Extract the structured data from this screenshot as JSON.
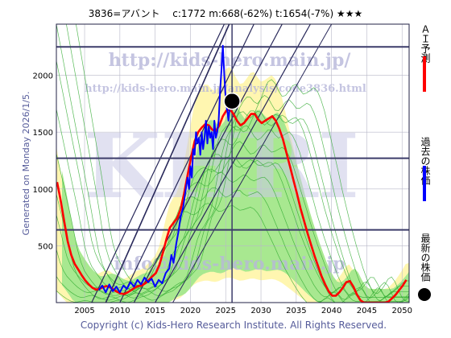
{
  "header": {
    "title": "3836=アバント　 c:1772  m:668(-62%)  t:1654(-7%)  ★★★"
  },
  "side_label": "Generated on Monday 2026/1/5.",
  "watermarks": {
    "url": "http://kids-hero.main.jp/",
    "analysis_url": "http://kids-hero.main.jp/analysis/code3836.html",
    "big": "KHRI",
    "email": "info@kids-hero.main.jp"
  },
  "footer": {
    "copyright": "Copyright (c) Kids-Hero Research Institute. All Rights Reserved."
  },
  "legend": [
    {
      "label": "ＡＩ予測",
      "color": "#ff0000",
      "marker": "line"
    },
    {
      "label": "過去の株価",
      "color": "#0000ff",
      "marker": "line"
    },
    {
      "label": "最新の株価",
      "color": "#000000",
      "marker": "dot"
    }
  ],
  "colors": {
    "band_outer": "#fff6b0",
    "band_inner": "#a8e890",
    "green_line": "#2faa2f",
    "grid": "#b8b8c8",
    "hline": "#3c3c6a",
    "trend": "#28285a"
  },
  "chart_data": {
    "type": "line",
    "title": "3836=アバント　 c:1772  m:668(-62%)  t:1654(-7%)  ★★★",
    "xlim": [
      2001,
      2051
    ],
    "ylim": [
      0,
      2450
    ],
    "x_ticks": [
      2005,
      2010,
      2015,
      2020,
      2025,
      2030,
      2035,
      2040,
      2045,
      2050
    ],
    "y_ticks": [
      500,
      1000,
      1500,
      2000
    ],
    "horizontal_levels": [
      2250,
      1270,
      640
    ],
    "vertical_marker_year": 2025.9,
    "latest": {
      "year": 2025.9,
      "price": 1772
    },
    "series": [
      {
        "name": "ＡＩ予測",
        "color": "#ff0000",
        "points": [
          [
            2001.1,
            1060
          ],
          [
            2001.6,
            900
          ],
          [
            2002.1,
            720
          ],
          [
            2002.6,
            540
          ],
          [
            2003.1,
            420
          ],
          [
            2003.6,
            340
          ],
          [
            2004.1,
            290
          ],
          [
            2004.6,
            240
          ],
          [
            2005.1,
            195
          ],
          [
            2005.6,
            160
          ],
          [
            2006.1,
            130
          ],
          [
            2006.6,
            115
          ],
          [
            2007.1,
            120
          ],
          [
            2007.6,
            135
          ],
          [
            2008.1,
            145
          ],
          [
            2008.6,
            135
          ],
          [
            2009.1,
            115
          ],
          [
            2009.6,
            95
          ],
          [
            2010.1,
            80
          ],
          [
            2010.6,
            75
          ],
          [
            2011.1,
            90
          ],
          [
            2011.6,
            110
          ],
          [
            2012.1,
            130
          ],
          [
            2012.6,
            145
          ],
          [
            2013.1,
            150
          ],
          [
            2013.6,
            170
          ],
          [
            2014.1,
            200
          ],
          [
            2014.6,
            230
          ],
          [
            2015.1,
            260
          ],
          [
            2015.6,
            330
          ],
          [
            2016.1,
            440
          ],
          [
            2016.6,
            560
          ],
          [
            2017.1,
            660
          ],
          [
            2017.6,
            700
          ],
          [
            2018.1,
            740
          ],
          [
            2018.6,
            820
          ],
          [
            2019.1,
            960
          ],
          [
            2019.6,
            1120
          ],
          [
            2020.1,
            1280
          ],
          [
            2020.6,
            1420
          ],
          [
            2021.1,
            1500
          ],
          [
            2021.6,
            1540
          ],
          [
            2022.1,
            1570
          ],
          [
            2022.6,
            1560
          ],
          [
            2023.1,
            1520
          ],
          [
            2023.6,
            1510
          ],
          [
            2024.1,
            1560
          ],
          [
            2024.6,
            1640
          ],
          [
            2025.1,
            1690
          ],
          [
            2025.6,
            1700
          ],
          [
            2026.1,
            1660
          ],
          [
            2026.6,
            1600
          ],
          [
            2027.1,
            1560
          ],
          [
            2027.6,
            1580
          ],
          [
            2028.1,
            1620
          ],
          [
            2028.6,
            1660
          ],
          [
            2029.1,
            1660
          ],
          [
            2029.6,
            1610
          ],
          [
            2030.1,
            1580
          ],
          [
            2030.6,
            1600
          ],
          [
            2031.1,
            1620
          ],
          [
            2031.6,
            1640
          ],
          [
            2032.1,
            1600
          ],
          [
            2032.6,
            1530
          ],
          [
            2033.1,
            1440
          ],
          [
            2033.6,
            1320
          ],
          [
            2034.1,
            1200
          ],
          [
            2034.6,
            1080
          ],
          [
            2035.1,
            960
          ],
          [
            2035.6,
            830
          ],
          [
            2036.1,
            720
          ],
          [
            2036.6,
            610
          ],
          [
            2037.1,
            510
          ],
          [
            2037.6,
            410
          ],
          [
            2038.1,
            320
          ],
          [
            2038.6,
            230
          ],
          [
            2039.1,
            160
          ],
          [
            2039.6,
            100
          ],
          [
            2040.1,
            60
          ],
          [
            2040.6,
            60
          ],
          [
            2041.1,
            90
          ],
          [
            2041.6,
            130
          ],
          [
            2042.1,
            180
          ],
          [
            2042.6,
            190
          ],
          [
            2043.1,
            140
          ],
          [
            2043.6,
            70
          ],
          [
            2044.1,
            20
          ],
          [
            2044.6,
            0
          ],
          [
            2045.1,
            0
          ],
          [
            2045.6,
            0
          ],
          [
            2046.1,
            0
          ],
          [
            2046.6,
            0
          ],
          [
            2047.1,
            0
          ],
          [
            2047.6,
            0
          ],
          [
            2048.1,
            10
          ],
          [
            2048.6,
            40
          ],
          [
            2049.1,
            70
          ],
          [
            2049.6,
            110
          ],
          [
            2050.1,
            150
          ],
          [
            2050.6,
            200
          ]
        ]
      },
      {
        "name": "過去の株価",
        "color": "#0000ff",
        "points": [
          [
            2007.0,
            110
          ],
          [
            2007.5,
            150
          ],
          [
            2008.0,
            90
          ],
          [
            2008.5,
            160
          ],
          [
            2009.0,
            100
          ],
          [
            2009.5,
            140
          ],
          [
            2010.0,
            90
          ],
          [
            2010.5,
            150
          ],
          [
            2011.0,
            120
          ],
          [
            2011.5,
            180
          ],
          [
            2012.0,
            140
          ],
          [
            2012.5,
            200
          ],
          [
            2013.0,
            160
          ],
          [
            2013.5,
            220
          ],
          [
            2014.0,
            180
          ],
          [
            2014.5,
            210
          ],
          [
            2015.0,
            140
          ],
          [
            2015.5,
            200
          ],
          [
            2016.0,
            170
          ],
          [
            2016.5,
            260
          ],
          [
            2017.0,
            300
          ],
          [
            2017.3,
            420
          ],
          [
            2017.6,
            350
          ],
          [
            2018.0,
            520
          ],
          [
            2018.3,
            620
          ],
          [
            2018.6,
            750
          ],
          [
            2019.0,
            850
          ],
          [
            2019.3,
            980
          ],
          [
            2019.6,
            1100
          ],
          [
            2019.8,
            1000
          ],
          [
            2020.0,
            1200
          ],
          [
            2020.2,
            1100
          ],
          [
            2020.4,
            1350
          ],
          [
            2020.6,
            1300
          ],
          [
            2020.8,
            1500
          ],
          [
            2021.0,
            1400
          ],
          [
            2021.2,
            1450
          ],
          [
            2021.4,
            1300
          ],
          [
            2021.6,
            1500
          ],
          [
            2021.8,
            1350
          ],
          [
            2022.0,
            1450
          ],
          [
            2022.2,
            1600
          ],
          [
            2022.4,
            1400
          ],
          [
            2022.6,
            1550
          ],
          [
            2022.8,
            1450
          ],
          [
            2023.0,
            1500
          ],
          [
            2023.2,
            1350
          ],
          [
            2023.4,
            1600
          ],
          [
            2023.6,
            1450
          ],
          [
            2023.8,
            1500
          ],
          [
            2024.0,
            1600
          ],
          [
            2024.2,
            1850
          ],
          [
            2024.4,
            2050
          ],
          [
            2024.6,
            2260
          ],
          [
            2024.8,
            2000
          ],
          [
            2025.0,
            1800
          ],
          [
            2025.2,
            1700
          ],
          [
            2025.4,
            1600
          ],
          [
            2025.6,
            1750
          ],
          [
            2025.9,
            1772
          ]
        ]
      }
    ]
  }
}
